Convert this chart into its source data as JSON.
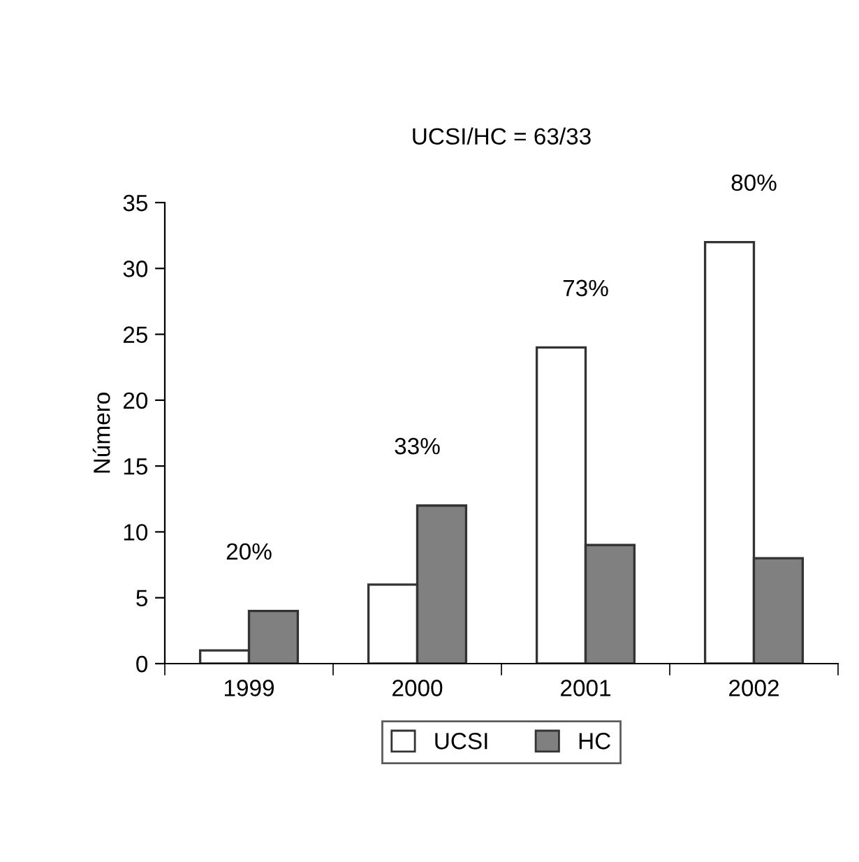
{
  "chart_data": {
    "type": "bar",
    "title": "UCSI/HC = 63/33",
    "ylabel": "Número",
    "categories": [
      "1999",
      "2000",
      "2001",
      "2002"
    ],
    "series": [
      {
        "name": "UCSI",
        "color": "#ffffff",
        "values": [
          1,
          6,
          24,
          32
        ]
      },
      {
        "name": "HC",
        "color": "#808080",
        "values": [
          4,
          12,
          9,
          8
        ]
      }
    ],
    "ylim": [
      0,
      35
    ],
    "yticks": [
      0,
      5,
      10,
      15,
      20,
      25,
      30,
      35
    ],
    "grid": false,
    "legend": "bottom",
    "annotations": [
      "20%",
      "33%",
      "73%",
      "80%"
    ]
  }
}
